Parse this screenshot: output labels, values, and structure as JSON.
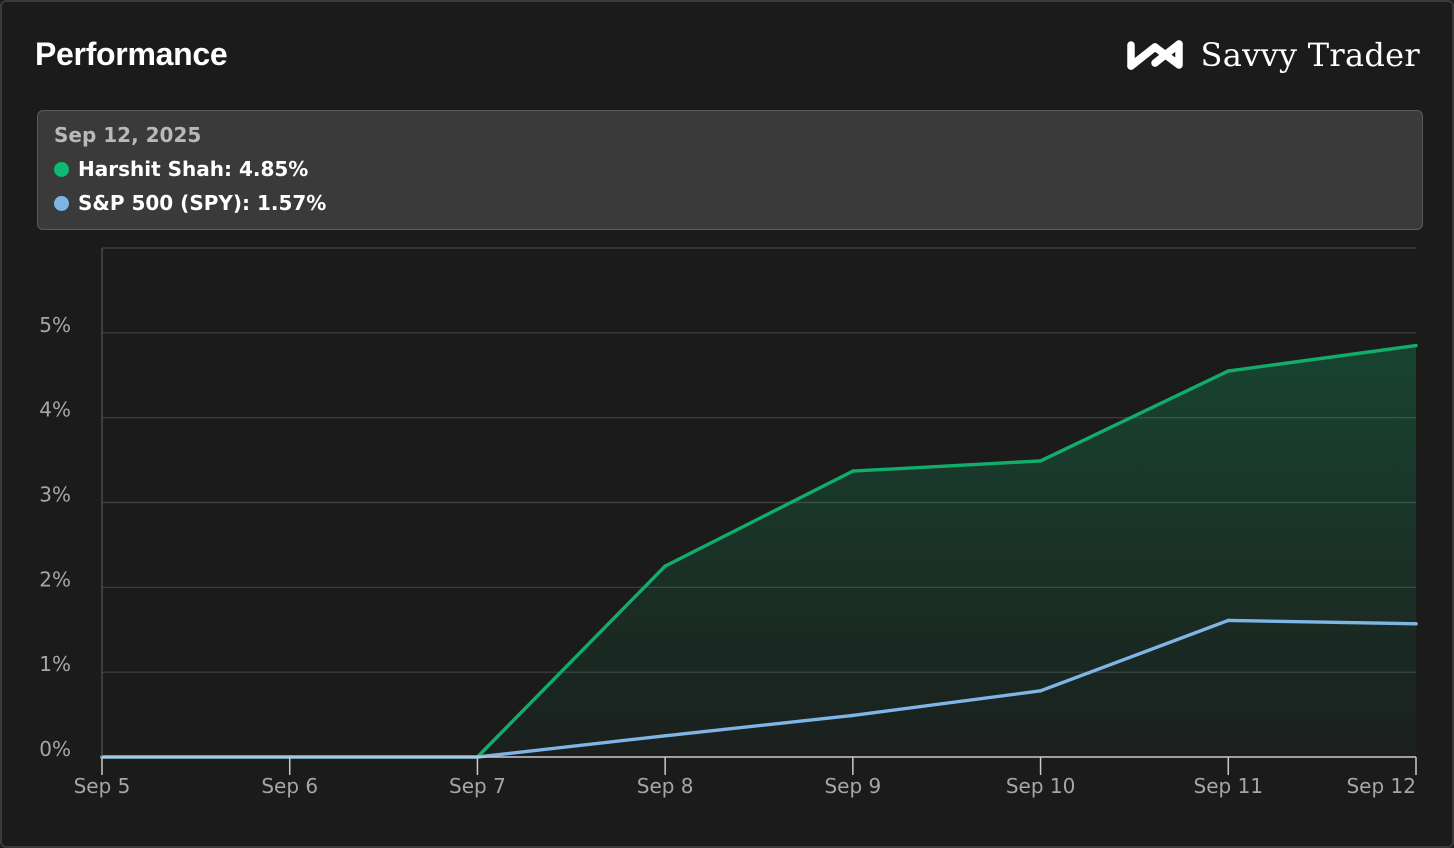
{
  "header": {
    "title": "Performance"
  },
  "brand": {
    "name": "Savvy Trader",
    "icon": "infinity-logo-icon"
  },
  "tooltip": {
    "date": "Sep 12, 2025",
    "rows": [
      {
        "label": "Harshit Shah: 4.85%",
        "color": "#0fb873"
      },
      {
        "label": "S&P 500 (SPY): 1.57%",
        "color": "#7fb5e6"
      }
    ]
  },
  "colors": {
    "background": "#1b1b1b",
    "grid": "#424242",
    "axis": "#c9c9c9",
    "portfolio": "#12ad6a",
    "benchmark": "#7fb5e6"
  },
  "chart_data": {
    "type": "area",
    "x": [
      "Sep 5",
      "Sep 6",
      "Sep 7",
      "Sep 8",
      "Sep 9",
      "Sep 10",
      "Sep 11",
      "Sep 12"
    ],
    "series": [
      {
        "name": "Harshit Shah",
        "style": "area",
        "values": [
          0,
          0,
          0,
          2.25,
          3.37,
          3.49,
          4.55,
          4.85
        ]
      },
      {
        "name": "S&P 500 (SPY)",
        "style": "line",
        "values": [
          0,
          0,
          0,
          0.25,
          0.49,
          0.78,
          1.61,
          1.57
        ]
      }
    ],
    "yticks": [
      0,
      1,
      2,
      3,
      4,
      5
    ],
    "ytick_labels": [
      "0%",
      "1%",
      "2%",
      "3%",
      "4%",
      "5%"
    ],
    "ylim": [
      0,
      6
    ],
    "grid": true,
    "legend": "tooltip top"
  }
}
